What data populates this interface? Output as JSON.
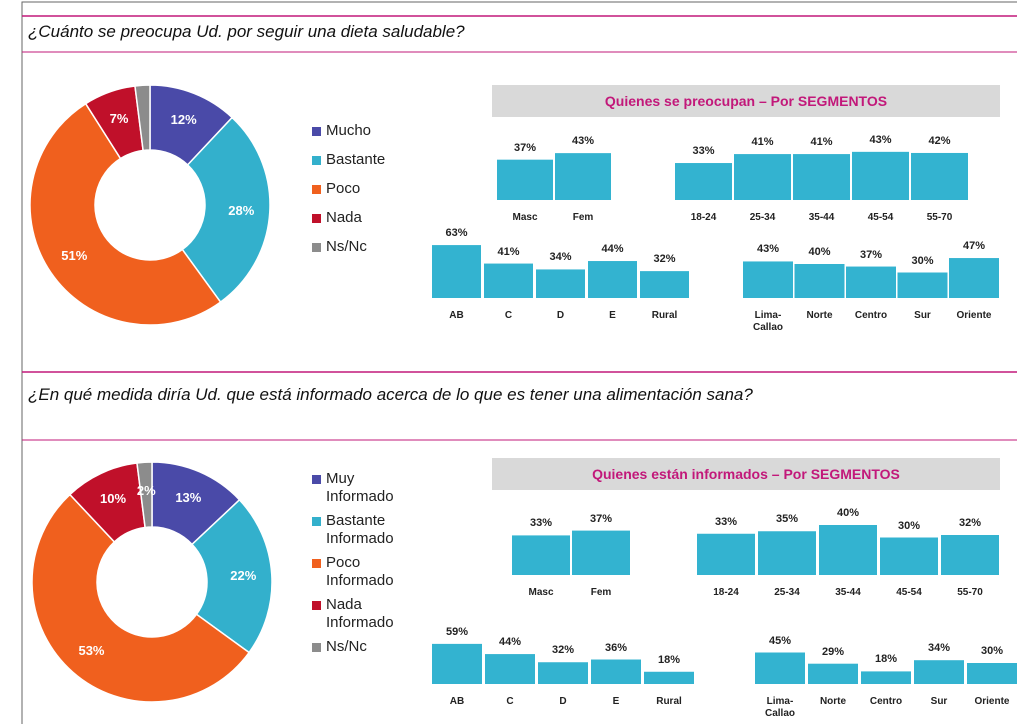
{
  "sections": [
    {
      "question": "¿Cuánto se preocupa Ud. por seguir una dieta saludable?",
      "pie": {
        "type": "pie",
        "categories": [
          "Mucho",
          "Bastante",
          "Poco",
          "Nada",
          "Ns/Nc"
        ],
        "values": [
          12,
          28,
          51,
          7,
          2
        ],
        "value_labels": [
          "12%",
          "28%",
          "51%",
          "7%",
          null
        ],
        "colors": [
          "#4a4aa8",
          "#33b0cc",
          "#f0601e",
          "#c0102a",
          "#8c8c8c"
        ]
      },
      "segments_title": "Quienes se preocupan – Por SEGMENTOS",
      "bars": [
        {
          "type": "bar",
          "categories": [
            "Masc",
            "Fem"
          ],
          "values": [
            37,
            43
          ],
          "value_labels": [
            "37%",
            "43%"
          ],
          "color": "#33b3d0"
        },
        {
          "type": "bar",
          "categories": [
            "18-24",
            "25-34",
            "35-44",
            "45-54",
            "55-70"
          ],
          "values": [
            33,
            41,
            41,
            43,
            42
          ],
          "value_labels": [
            "33%",
            "41%",
            "41%",
            "43%",
            "42%"
          ],
          "color": "#33b3d0"
        },
        {
          "type": "bar",
          "categories": [
            "AB",
            "C",
            "D",
            "E",
            "Rural"
          ],
          "values": [
            63,
            41,
            34,
            44,
            32
          ],
          "value_labels": [
            "63%",
            "41%",
            "34%",
            "44%",
            "32%"
          ],
          "color": "#33b3d0"
        },
        {
          "type": "bar",
          "categories": [
            "Lima-Callao",
            "Norte",
            "Centro",
            "Sur",
            "Oriente"
          ],
          "values": [
            43,
            40,
            37,
            30,
            47
          ],
          "value_labels": [
            "43%",
            "40%",
            "37%",
            "30%",
            "47%"
          ],
          "color": "#33b3d0"
        }
      ]
    },
    {
      "question": "¿En qué medida diría Ud. que está informado acerca de lo que es tener una alimentación sana?",
      "pie": {
        "type": "pie",
        "categories": [
          "Muy Informado",
          "Bastante Informado",
          "Poco Informado",
          "Nada Informado",
          "Ns/Nc"
        ],
        "values": [
          13,
          22,
          53,
          10,
          2
        ],
        "value_labels": [
          "13%",
          "22%",
          "53%",
          "10%",
          "2%"
        ],
        "colors": [
          "#4a4aa8",
          "#33b0cc",
          "#f0601e",
          "#c0102a",
          "#8c8c8c"
        ]
      },
      "segments_title": "Quienes están informados – Por SEGMENTOS",
      "bars": [
        {
          "type": "bar",
          "categories": [
            "Masc",
            "Fem"
          ],
          "values": [
            33,
            37
          ],
          "value_labels": [
            "33%",
            "37%"
          ],
          "color": "#33b3d0"
        },
        {
          "type": "bar",
          "categories": [
            "18-24",
            "25-34",
            "35-44",
            "45-54",
            "55-70"
          ],
          "values": [
            33,
            35,
            40,
            30,
            32
          ],
          "value_labels": [
            "33%",
            "35%",
            "40%",
            "30%",
            "32%"
          ],
          "color": "#33b3d0"
        },
        {
          "type": "bar",
          "categories": [
            "AB",
            "C",
            "D",
            "E",
            "Rural"
          ],
          "values": [
            59,
            44,
            32,
            36,
            18
          ],
          "value_labels": [
            "59%",
            "44%",
            "32%",
            "36%",
            "18%"
          ],
          "color": "#33b3d0"
        },
        {
          "type": "bar",
          "categories": [
            "Lima-Callao",
            "Norte",
            "Centro",
            "Sur",
            "Oriente"
          ],
          "values": [
            45,
            29,
            18,
            34,
            30
          ],
          "value_labels": [
            "45%",
            "29%",
            "18%",
            "34%",
            "30%"
          ],
          "color": "#33b3d0"
        }
      ]
    }
  ]
}
